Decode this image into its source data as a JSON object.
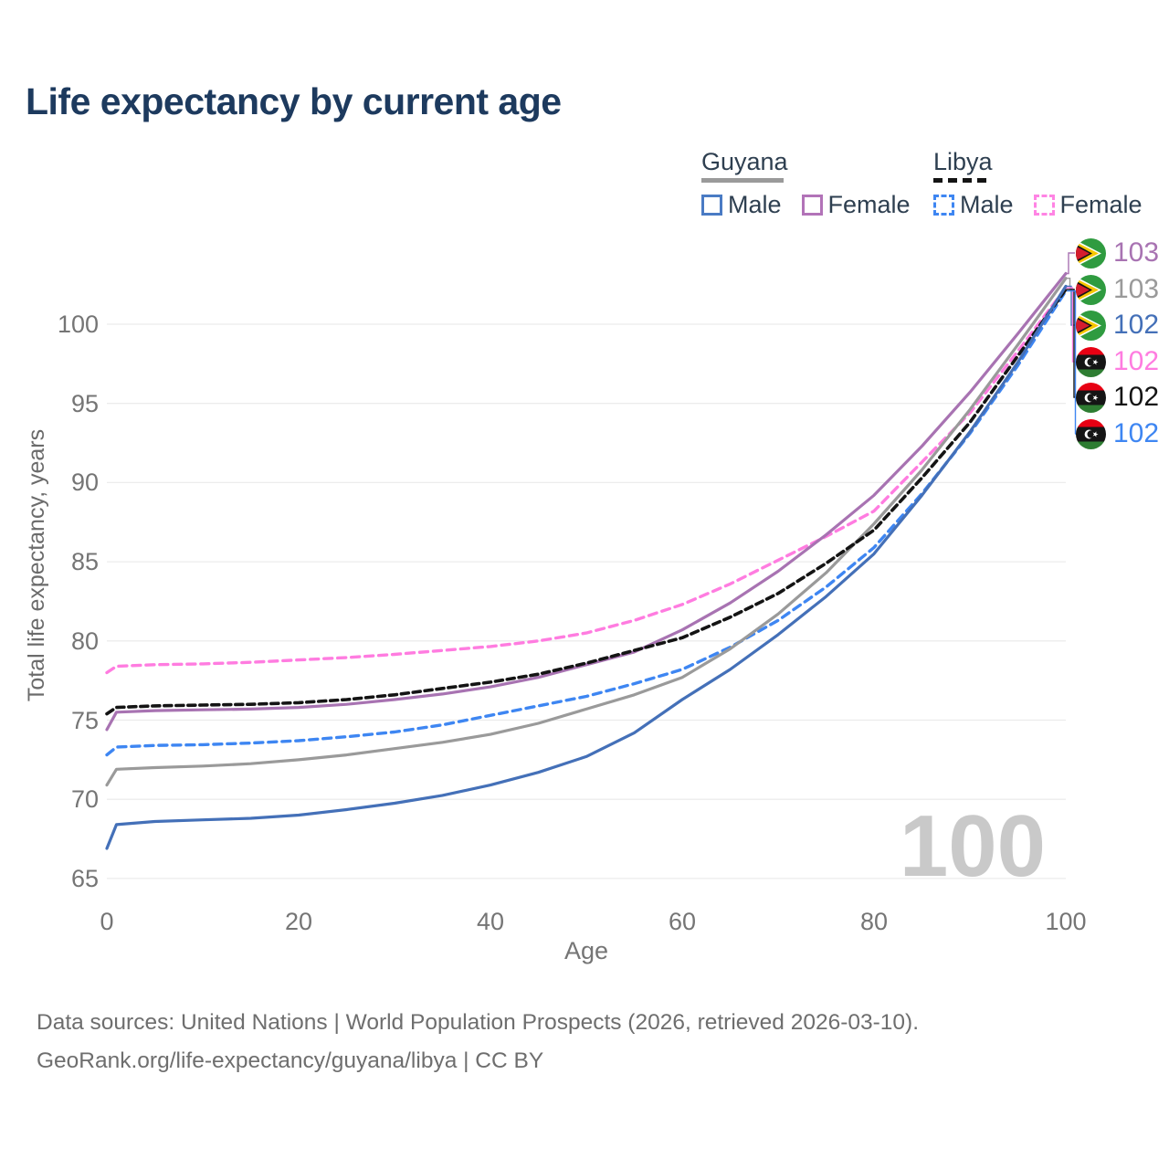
{
  "title": "Life expectancy by current age",
  "watermark_age": "100",
  "legend": {
    "groups": [
      {
        "country": "Guyana",
        "line_style": "solid",
        "underline_color": "#9a9a9a",
        "items": [
          {
            "label": "Male",
            "color": "#4a7bc4",
            "dashed": false
          },
          {
            "label": "Female",
            "color": "#b273b8",
            "dashed": false
          }
        ]
      },
      {
        "country": "Libya",
        "line_style": "dashed",
        "underline_color": "#141414",
        "items": [
          {
            "label": "Male",
            "color": "#3e86f2",
            "dashed": true
          },
          {
            "label": "Female",
            "color": "#ff84e4",
            "dashed": true
          }
        ]
      }
    ]
  },
  "footer": {
    "line1": "Data sources: United Nations | World Population Prospects (2026, retrieved 2026-03-10).",
    "line2": "GeoRank.org/life-expectancy/guyana/libya | CC BY"
  },
  "chart_data": {
    "type": "line",
    "title": "Life expectancy by current age",
    "xlabel": "Age",
    "ylabel": "Total life expectancy, years",
    "xlim": [
      0,
      100
    ],
    "ylim": [
      65,
      103.5
    ],
    "xticks": [
      0,
      20,
      40,
      60,
      80,
      100
    ],
    "yticks": [
      65,
      70,
      75,
      80,
      85,
      90,
      95,
      100
    ],
    "grid": "horizontal",
    "legend_position": "top-right",
    "x": [
      0,
      1,
      5,
      10,
      15,
      20,
      25,
      30,
      35,
      40,
      45,
      50,
      55,
      60,
      65,
      70,
      75,
      80,
      85,
      90,
      95,
      100
    ],
    "series": [
      {
        "name": "Guyana Female",
        "country": "Guyana",
        "sex": "Female",
        "style": "solid",
        "color": "#a873b2",
        "flag": "guyana",
        "end_label": "103",
        "values": [
          74.4,
          75.5,
          75.6,
          75.65,
          75.7,
          75.8,
          76.0,
          76.3,
          76.65,
          77.1,
          77.7,
          78.5,
          79.3,
          80.7,
          82.4,
          84.4,
          86.7,
          89.2,
          92.3,
          95.7,
          99.4,
          103.2
        ]
      },
      {
        "name": "Guyana Both sexes",
        "country": "Guyana",
        "sex": "Both",
        "style": "solid",
        "color": "#9a9a9a",
        "flag": "guyana",
        "end_label": "103",
        "values": [
          70.9,
          71.9,
          72.0,
          72.1,
          72.25,
          72.5,
          72.8,
          73.2,
          73.6,
          74.1,
          74.8,
          75.7,
          76.6,
          77.7,
          79.5,
          81.7,
          84.3,
          87.4,
          90.8,
          94.6,
          98.7,
          102.9
        ]
      },
      {
        "name": "Guyana Male",
        "country": "Guyana",
        "sex": "Male",
        "style": "solid",
        "color": "#4470b8",
        "flag": "guyana",
        "end_label": "102",
        "values": [
          66.9,
          68.4,
          68.6,
          68.7,
          68.8,
          69.0,
          69.35,
          69.75,
          70.25,
          70.9,
          71.7,
          72.7,
          74.2,
          76.3,
          78.2,
          80.4,
          82.8,
          85.5,
          89.2,
          93.2,
          97.6,
          102.4
        ]
      },
      {
        "name": "Libya Female",
        "country": "Libya",
        "sex": "Female",
        "style": "dashed",
        "color": "#ff7ce0",
        "flag": "libya",
        "end_label": "102",
        "values": [
          78.0,
          78.4,
          78.5,
          78.55,
          78.65,
          78.8,
          78.95,
          79.15,
          79.4,
          79.65,
          80.0,
          80.5,
          81.3,
          82.3,
          83.6,
          85.1,
          86.6,
          88.2,
          91.3,
          94.4,
          98.3,
          102.3
        ]
      },
      {
        "name": "Libya Both sexes",
        "country": "Libya",
        "sex": "Both",
        "style": "dashed",
        "color": "#141414",
        "flag": "libya",
        "end_label": "102",
        "values": [
          75.4,
          75.8,
          75.9,
          75.95,
          76.0,
          76.1,
          76.3,
          76.6,
          77.0,
          77.4,
          77.9,
          78.6,
          79.4,
          80.2,
          81.5,
          83.0,
          84.9,
          87.0,
          90.3,
          93.8,
          98.0,
          102.2
        ]
      },
      {
        "name": "Libya Male",
        "country": "Libya",
        "sex": "Male",
        "style": "dashed",
        "color": "#3e86f2",
        "flag": "libya",
        "end_label": "102",
        "values": [
          72.8,
          73.3,
          73.4,
          73.45,
          73.55,
          73.7,
          73.95,
          74.25,
          74.7,
          75.3,
          75.9,
          76.5,
          77.3,
          78.2,
          79.6,
          81.3,
          83.4,
          85.9,
          89.3,
          93.1,
          97.4,
          102.1
        ]
      }
    ]
  }
}
